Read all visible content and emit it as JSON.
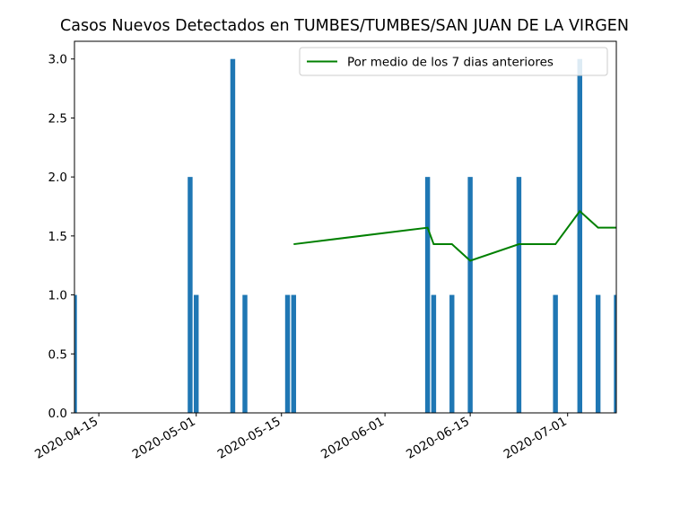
{
  "chart_data": {
    "type": "bar",
    "title": "Casos Nuevos Detectados en TUMBES/TUMBES/SAN JUAN DE LA VIRGEN",
    "xlabel": "",
    "ylabel": "",
    "ylim": [
      0,
      3.15
    ],
    "xlim": [
      "2020-04-11",
      "2020-07-08"
    ],
    "yticks": [
      "0.0",
      "0.5",
      "1.0",
      "1.5",
      "2.0",
      "2.5",
      "3.0"
    ],
    "xticks": [
      "2020-04-15",
      "2020-05-01",
      "2020-05-15",
      "2020-06-01",
      "2020-06-15",
      "2020-07-01"
    ],
    "grid": false,
    "legend_position": "top-right",
    "bar_color": "#1f77b4",
    "line_color": "#008000",
    "bars": [
      {
        "x": "2020-04-11",
        "y": 1
      },
      {
        "x": "2020-04-30",
        "y": 2
      },
      {
        "x": "2020-05-01",
        "y": 1
      },
      {
        "x": "2020-05-07",
        "y": 3
      },
      {
        "x": "2020-05-09",
        "y": 1
      },
      {
        "x": "2020-05-16",
        "y": 1
      },
      {
        "x": "2020-05-17",
        "y": 1
      },
      {
        "x": "2020-06-08",
        "y": 2
      },
      {
        "x": "2020-06-09",
        "y": 1
      },
      {
        "x": "2020-06-12",
        "y": 1
      },
      {
        "x": "2020-06-15",
        "y": 2
      },
      {
        "x": "2020-06-23",
        "y": 2
      },
      {
        "x": "2020-06-29",
        "y": 1
      },
      {
        "x": "2020-07-03",
        "y": 3
      },
      {
        "x": "2020-07-06",
        "y": 1
      },
      {
        "x": "2020-07-09",
        "y": 1
      }
    ],
    "series": [
      {
        "name": "Por medio de los 7 dias anteriores",
        "points": [
          {
            "x": "2020-05-17",
            "y": 1.43
          },
          {
            "x": "2020-06-08",
            "y": 1.57
          },
          {
            "x": "2020-06-09",
            "y": 1.43
          },
          {
            "x": "2020-06-12",
            "y": 1.43
          },
          {
            "x": "2020-06-15",
            "y": 1.29
          },
          {
            "x": "2020-06-23",
            "y": 1.43
          },
          {
            "x": "2020-06-29",
            "y": 1.43
          },
          {
            "x": "2020-07-03",
            "y": 1.71
          },
          {
            "x": "2020-07-06",
            "y": 1.57
          },
          {
            "x": "2020-07-09",
            "y": 1.57
          }
        ]
      }
    ]
  }
}
